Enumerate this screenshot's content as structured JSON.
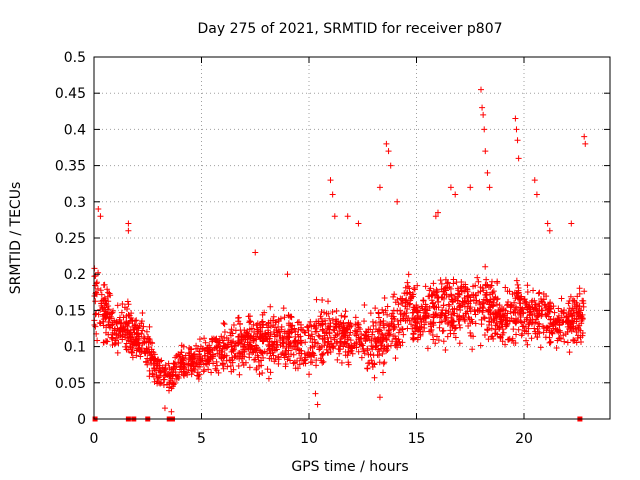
{
  "chart_data": {
    "type": "scatter",
    "title": "Day 275 of 2021, SRMTID for receiver p807",
    "xlabel": "GPS time / hours",
    "ylabel": "SRMTID / TECUs",
    "xlim": [
      0,
      24
    ],
    "ylim": [
      0,
      0.5
    ],
    "xticks": [
      0,
      5,
      10,
      15,
      20
    ],
    "xtick_labels": [
      "0",
      "5",
      "10",
      "15",
      "20"
    ],
    "yticks": [
      0,
      0.05,
      0.1,
      0.15,
      0.2,
      0.25,
      0.3,
      0.35,
      0.4,
      0.45,
      0.5
    ],
    "ytick_labels": [
      "0",
      "0.05",
      "0.1",
      "0.15",
      "0.2",
      "0.25",
      "0.3",
      "0.35",
      "0.4",
      "0.45",
      "0.5"
    ],
    "grid": true,
    "marker": "+",
    "color": "#ff0000",
    "zero_markers": {
      "marker": "square",
      "x": [
        0.05,
        1.6,
        1.85,
        2.5,
        3.5,
        3.65,
        22.6
      ]
    },
    "series": [
      {
        "name": "SRMTID",
        "trend": {
          "x": [
            0,
            0.5,
            1,
            1.5,
            2,
            2.5,
            3,
            3.5,
            4,
            5,
            6,
            7,
            8,
            9,
            10,
            11,
            12,
            13,
            13.7,
            14.5,
            15,
            16,
            17,
            18,
            19,
            20,
            21,
            22,
            22.8
          ],
          "mean": [
            0.16,
            0.15,
            0.12,
            0.13,
            0.11,
            0.1,
            0.065,
            0.06,
            0.075,
            0.085,
            0.095,
            0.105,
            0.11,
            0.11,
            0.11,
            0.12,
            0.11,
            0.11,
            0.12,
            0.15,
            0.14,
            0.15,
            0.15,
            0.16,
            0.14,
            0.15,
            0.14,
            0.13,
            0.15
          ],
          "spread": [
            0.06,
            0.05,
            0.04,
            0.05,
            0.04,
            0.04,
            0.03,
            0.025,
            0.03,
            0.035,
            0.04,
            0.045,
            0.05,
            0.05,
            0.05,
            0.05,
            0.045,
            0.05,
            0.055,
            0.05,
            0.05,
            0.055,
            0.055,
            0.06,
            0.05,
            0.055,
            0.05,
            0.04,
            0.05
          ]
        },
        "highlights": [
          {
            "x": 0.2,
            "y": 0.29
          },
          {
            "x": 0.3,
            "y": 0.28
          },
          {
            "x": 1.6,
            "y": 0.27
          },
          {
            "x": 1.6,
            "y": 0.26
          },
          {
            "x": 7.5,
            "y": 0.23
          },
          {
            "x": 11.0,
            "y": 0.33
          },
          {
            "x": 11.1,
            "y": 0.31
          },
          {
            "x": 11.2,
            "y": 0.28
          },
          {
            "x": 13.3,
            "y": 0.32
          },
          {
            "x": 13.6,
            "y": 0.38
          },
          {
            "x": 13.7,
            "y": 0.37
          },
          {
            "x": 13.8,
            "y": 0.35
          },
          {
            "x": 14.1,
            "y": 0.3
          },
          {
            "x": 16.6,
            "y": 0.32
          },
          {
            "x": 16.8,
            "y": 0.31
          },
          {
            "x": 17.5,
            "y": 0.32
          },
          {
            "x": 18.0,
            "y": 0.455
          },
          {
            "x": 18.05,
            "y": 0.43
          },
          {
            "x": 18.1,
            "y": 0.42
          },
          {
            "x": 18.15,
            "y": 0.4
          },
          {
            "x": 18.2,
            "y": 0.37
          },
          {
            "x": 18.3,
            "y": 0.34
          },
          {
            "x": 18.4,
            "y": 0.32
          },
          {
            "x": 19.6,
            "y": 0.415
          },
          {
            "x": 19.65,
            "y": 0.4
          },
          {
            "x": 19.7,
            "y": 0.385
          },
          {
            "x": 19.75,
            "y": 0.36
          },
          {
            "x": 20.5,
            "y": 0.33
          },
          {
            "x": 20.6,
            "y": 0.31
          },
          {
            "x": 21.1,
            "y": 0.27
          },
          {
            "x": 21.2,
            "y": 0.26
          },
          {
            "x": 22.2,
            "y": 0.27
          },
          {
            "x": 22.8,
            "y": 0.39
          },
          {
            "x": 22.85,
            "y": 0.38
          },
          {
            "x": 11.8,
            "y": 0.28
          },
          {
            "x": 12.3,
            "y": 0.27
          },
          {
            "x": 15.9,
            "y": 0.28
          },
          {
            "x": 16.0,
            "y": 0.285
          },
          {
            "x": 9.0,
            "y": 0.2
          },
          {
            "x": 10.4,
            "y": 0.02
          },
          {
            "x": 10.3,
            "y": 0.035
          },
          {
            "x": 13.3,
            "y": 0.03
          },
          {
            "x": 3.3,
            "y": 0.015
          },
          {
            "x": 3.6,
            "y": 0.01
          }
        ]
      }
    ]
  }
}
